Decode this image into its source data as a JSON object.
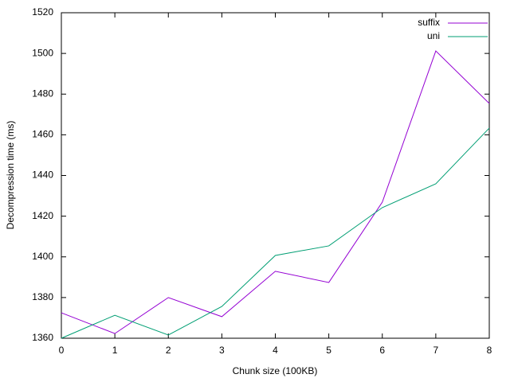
{
  "chart_data": {
    "type": "line",
    "x_label": "Chunk size (100KB)",
    "y_label": "Decompression time (ms)",
    "x": [
      0,
      1,
      2,
      3,
      4,
      5,
      6,
      7,
      8
    ],
    "series": [
      {
        "name": "suffix",
        "color": "#9400d3",
        "values": [
          1372.5,
          1362.3,
          1380,
          1370.6,
          1392.9,
          1387.4,
          1426.9,
          1501.2,
          1475.4
        ]
      },
      {
        "name": "uni",
        "color": "#009e73",
        "values": [
          1360,
          1371.3,
          1361.6,
          1375.6,
          1400.7,
          1405.4,
          1424.2,
          1435.9,
          1463.3
        ]
      }
    ],
    "xlim": [
      0,
      8
    ],
    "xticks": [
      0,
      1,
      2,
      3,
      4,
      5,
      6,
      7,
      8
    ],
    "ylim": [
      1360,
      1520
    ],
    "yticks": [
      1360,
      1380,
      1400,
      1420,
      1440,
      1460,
      1480,
      1500,
      1520
    ],
    "legend": "top-right",
    "grid": false
  }
}
